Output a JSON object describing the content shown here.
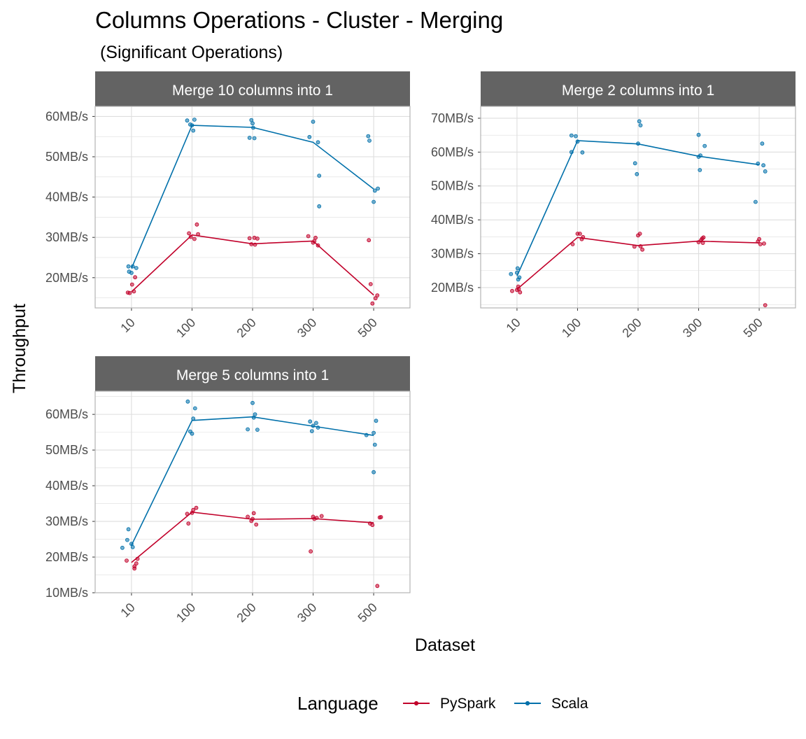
{
  "chart_data": {
    "type": "line",
    "title": "Columns Operations - Cluster - Merging",
    "subtitle": " (Significant Operations)",
    "xlabel": "Dataset",
    "ylabel": "Throughput",
    "categories": [
      "10",
      "100",
      "200",
      "300",
      "500"
    ],
    "legend": {
      "title": "Language",
      "position": "bottom",
      "entries": [
        "PySpark",
        "Scala"
      ]
    },
    "colors": {
      "PySpark": "#c1002a",
      "Scala": "#0070aa",
      "strip_bg": "#636363",
      "grid": "#dedede",
      "border": "#b3b3b3"
    },
    "facets": [
      {
        "label": "Merge 10 columns into 1",
        "ylim": [
          12.5,
          62.5
        ],
        "yticks": [
          20,
          30,
          40,
          50,
          60
        ],
        "tick_labels": [
          "20MB/s",
          "30MB/s",
          "40MB/s",
          "50MB/s",
          "60MB/s"
        ],
        "series": [
          {
            "name": "PySpark",
            "values": [
              16.5,
              30.6,
              28.4,
              29.1,
              15.7
            ],
            "points": [
              [
                -0.06,
                16.3
              ],
              [
                0.01,
                18.3
              ],
              [
                0.06,
                20.1
              ],
              [
                0.04,
                16.6
              ],
              [
                -0.03,
                16.2
              ],
              [
                -0.05,
                31.0
              ],
              [
                0.04,
                29.6
              ],
              [
                0.08,
                33.2
              ],
              [
                -0.02,
                30.1
              ],
              [
                0.1,
                30.8
              ],
              [
                -0.05,
                29.8
              ],
              [
                0.04,
                28.2
              ],
              [
                0.08,
                29.7
              ],
              [
                -0.02,
                28.3
              ],
              [
                0.03,
                29.9
              ],
              [
                -0.08,
                30.3
              ],
              [
                0.02,
                29.1
              ],
              [
                0.04,
                29.9
              ],
              [
                0.0,
                28.7
              ],
              [
                0.08,
                28.0
              ],
              [
                -0.08,
                29.3
              ],
              [
                -0.05,
                18.4
              ],
              [
                0.03,
                14.9
              ],
              [
                -0.02,
                13.6
              ],
              [
                0.06,
                15.6
              ]
            ]
          },
          {
            "name": "Scala",
            "values": [
              22.3,
              57.8,
              57.3,
              53.6,
              42.0
            ],
            "points": [
              [
                -0.05,
                22.8
              ],
              [
                0.02,
                22.8
              ],
              [
                0.08,
                22.4
              ],
              [
                -0.04,
                21.5
              ],
              [
                0.0,
                21.2
              ],
              [
                -0.08,
                59.0
              ],
              [
                0.0,
                57.8
              ],
              [
                0.04,
                59.2
              ],
              [
                0.02,
                56.5
              ],
              [
                -0.03,
                58.0
              ],
              [
                -0.02,
                59.1
              ],
              [
                0.03,
                54.6
              ],
              [
                -0.05,
                54.7
              ],
              [
                0.0,
                58.3
              ],
              [
                0.01,
                57.2
              ],
              [
                -0.06,
                54.9
              ],
              [
                0.0,
                58.7
              ],
              [
                0.08,
                53.6
              ],
              [
                0.1,
                45.3
              ],
              [
                0.1,
                37.7
              ],
              [
                -0.09,
                55.1
              ],
              [
                0.02,
                41.6
              ],
              [
                0.07,
                42.1
              ],
              [
                0.0,
                38.8
              ],
              [
                -0.07,
                54.0
              ]
            ]
          }
        ]
      },
      {
        "label": "Merge 2 columns into 1",
        "ylim": [
          14.0,
          73.5
        ],
        "yticks": [
          20,
          30,
          40,
          50,
          60,
          70
        ],
        "tick_labels": [
          "20MB/s",
          "30MB/s",
          "40MB/s",
          "50MB/s",
          "60MB/s",
          "70MB/s"
        ],
        "series": [
          {
            "name": "PySpark",
            "values": [
              19.5,
              34.8,
              32.4,
              33.7,
              33.2
            ],
            "points": [
              [
                -0.08,
                19.0
              ],
              [
                0.03,
                19.6
              ],
              [
                0.05,
                18.6
              ],
              [
                0.0,
                19.3
              ],
              [
                0.02,
                20.3
              ],
              [
                -0.08,
                32.8
              ],
              [
                0.0,
                35.9
              ],
              [
                0.04,
                35.9
              ],
              [
                0.07,
                34.3
              ],
              [
                0.09,
                34.9
              ],
              [
                -0.06,
                32.1
              ],
              [
                0.0,
                35.4
              ],
              [
                0.03,
                35.9
              ],
              [
                0.07,
                31.2
              ],
              [
                0.04,
                32.2
              ],
              [
                0.0,
                33.4
              ],
              [
                0.04,
                34.0
              ],
              [
                0.06,
                34.5
              ],
              [
                0.08,
                34.8
              ],
              [
                0.07,
                33.2
              ],
              [
                0.0,
                34.3
              ],
              [
                0.02,
                32.8
              ],
              [
                0.08,
                33.0
              ],
              [
                0.1,
                14.8
              ],
              [
                -0.02,
                33.6
              ]
            ]
          },
          {
            "name": "Scala",
            "values": [
              23.4,
              63.4,
              62.4,
              58.8,
              56.3
            ],
            "points": [
              [
                -0.1,
                24.0
              ],
              [
                0.01,
                25.7
              ],
              [
                0.04,
                23.0
              ],
              [
                0.02,
                22.4
              ],
              [
                0.0,
                24.4
              ],
              [
                -0.1,
                64.9
              ],
              [
                -0.03,
                64.7
              ],
              [
                0.08,
                59.9
              ],
              [
                0.0,
                63.1
              ],
              [
                -0.1,
                60.0
              ],
              [
                -0.05,
                56.7
              ],
              [
                -0.02,
                53.5
              ],
              [
                0.02,
                69.1
              ],
              [
                0.04,
                67.9
              ],
              [
                0.0,
                62.5
              ],
              [
                0.0,
                65.1
              ],
              [
                0.0,
                58.6
              ],
              [
                0.02,
                54.7
              ],
              [
                0.1,
                61.8
              ],
              [
                0.03,
                59.0
              ],
              [
                -0.06,
                45.3
              ],
              [
                -0.02,
                56.6
              ],
              [
                0.05,
                62.5
              ],
              [
                0.07,
                56.1
              ],
              [
                0.1,
                54.3
              ]
            ]
          }
        ]
      },
      {
        "label": "Merge 5 columns into 1",
        "ylim": [
          10.0,
          66.5
        ],
        "yticks": [
          10,
          20,
          30,
          40,
          50,
          60
        ],
        "tick_labels": [
          "10MB/s",
          "20MB/s",
          "30MB/s",
          "40MB/s",
          "50MB/s",
          "60MB/s"
        ],
        "series": [
          {
            "name": "PySpark",
            "values": [
              18.5,
              32.6,
              30.6,
              30.8,
              29.6
            ],
            "points": [
              [
                -0.08,
                19.0
              ],
              [
                0.05,
                17.4
              ],
              [
                0.05,
                16.8
              ],
              [
                0.1,
                19.5
              ],
              [
                0.08,
                18.2
              ],
              [
                -0.08,
                32.1
              ],
              [
                -0.06,
                29.4
              ],
              [
                0.02,
                33.2
              ],
              [
                0.07,
                33.8
              ],
              [
                0.0,
                32.4
              ],
              [
                -0.08,
                31.3
              ],
              [
                0.0,
                30.7
              ],
              [
                0.02,
                32.3
              ],
              [
                0.06,
                29.1
              ],
              [
                -0.02,
                30.1
              ],
              [
                -0.04,
                21.6
              ],
              [
                0.0,
                31.3
              ],
              [
                0.06,
                31.0
              ],
              [
                0.14,
                31.5
              ],
              [
                0.02,
                30.7
              ],
              [
                -0.06,
                29.4
              ],
              [
                0.1,
                31.1
              ],
              [
                0.12,
                31.2
              ],
              [
                0.06,
                11.9
              ],
              [
                -0.02,
                29.0
              ]
            ]
          },
          {
            "name": "Scala",
            "values": [
              23.3,
              58.3,
              59.3,
              56.7,
              54.1
            ],
            "points": [
              [
                -0.15,
                22.6
              ],
              [
                -0.07,
                24.8
              ],
              [
                -0.05,
                27.8
              ],
              [
                0.0,
                23.7
              ],
              [
                0.02,
                22.8
              ],
              [
                -0.07,
                63.6
              ],
              [
                -0.03,
                55.2
              ],
              [
                0.0,
                54.6
              ],
              [
                0.05,
                61.7
              ],
              [
                0.02,
                58.8
              ],
              [
                -0.08,
                55.8
              ],
              [
                0.0,
                63.2
              ],
              [
                0.04,
                60.0
              ],
              [
                0.08,
                55.7
              ],
              [
                0.02,
                59.1
              ],
              [
                -0.05,
                58.0
              ],
              [
                -0.02,
                55.3
              ],
              [
                0.05,
                57.6
              ],
              [
                0.08,
                56.3
              ],
              [
                0.0,
                56.8
              ],
              [
                -0.12,
                54.2
              ],
              [
                0.0,
                43.8
              ],
              [
                0.02,
                51.5
              ],
              [
                0.04,
                58.2
              ],
              [
                0.0,
                54.8
              ]
            ]
          }
        ]
      }
    ]
  }
}
